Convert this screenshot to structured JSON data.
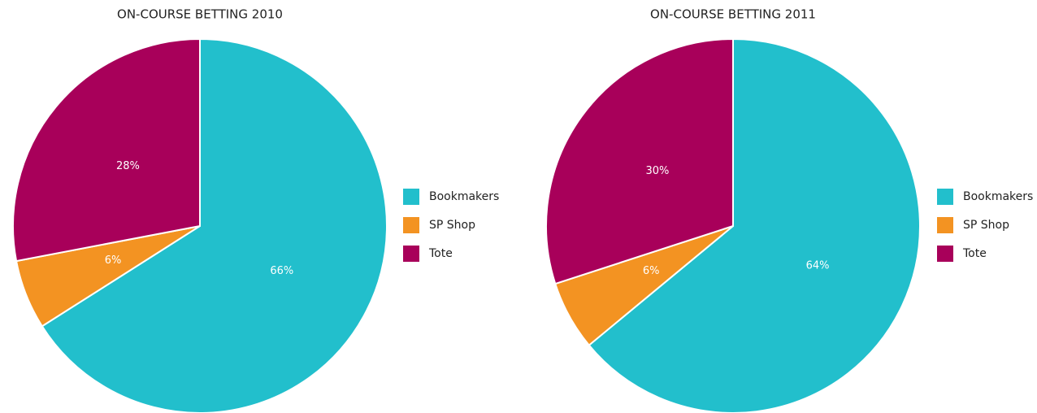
{
  "chart_data": [
    {
      "type": "pie",
      "title": "ON-COURSE BETTING 2010",
      "categories": [
        "Bookmakers",
        "SP Shop",
        "Tote"
      ],
      "values": [
        66,
        6,
        28
      ],
      "value_labels": [
        "66%",
        "6%",
        "28%"
      ],
      "colors": [
        "#22bfcc",
        "#f39322",
        "#a8005a"
      ],
      "legend": "right"
    },
    {
      "type": "pie",
      "title": "ON-COURSE BETTING 2011",
      "categories": [
        "Bookmakers",
        "SP Shop",
        "Tote"
      ],
      "values": [
        64,
        6,
        30
      ],
      "value_labels": [
        "64%",
        "6%",
        "30%"
      ],
      "colors": [
        "#22bfcc",
        "#f39322",
        "#a8005a"
      ],
      "legend": "right"
    }
  ]
}
